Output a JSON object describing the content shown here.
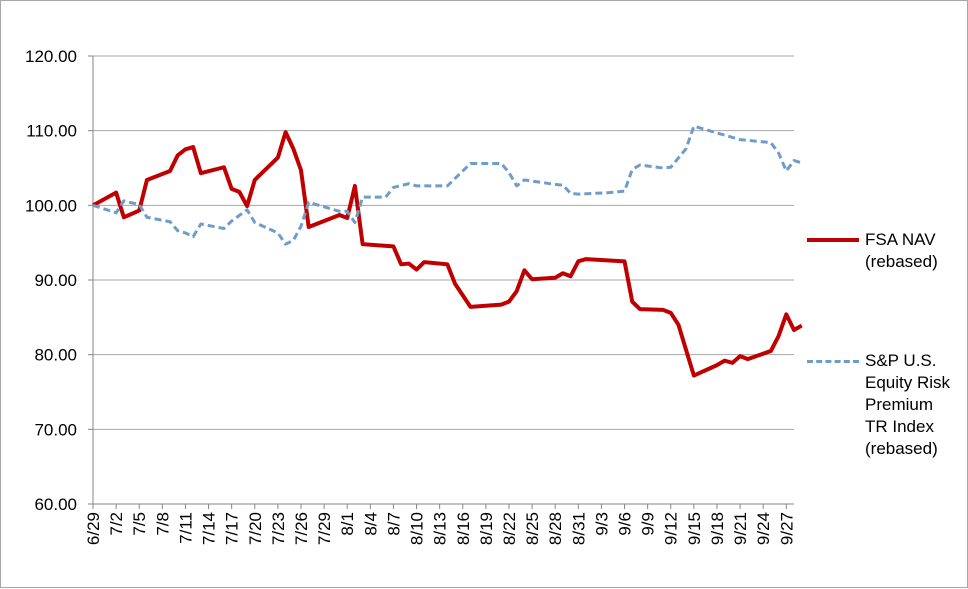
{
  "chart_data": {
    "type": "line",
    "title": "",
    "xlabel": "",
    "ylabel": "",
    "ylim": [
      60,
      120
    ],
    "yticks": [
      "60.00",
      "70.00",
      "80.00",
      "90.00",
      "100.00",
      "110.00",
      "120.00"
    ],
    "grid": "horizontal",
    "legend_position": "right",
    "x_tick_labels": [
      "6/29",
      "7/2",
      "7/5",
      "7/8",
      "7/11",
      "7/14",
      "7/17",
      "7/20",
      "7/23",
      "7/26",
      "7/29",
      "8/1",
      "8/4",
      "8/7",
      "8/10",
      "8/13",
      "8/16",
      "8/19",
      "8/22",
      "8/25",
      "8/28",
      "8/31",
      "9/3",
      "9/6",
      "9/9",
      "9/12",
      "9/15",
      "9/18",
      "9/21",
      "9/24",
      "9/27"
    ],
    "x_day_offsets": [
      0,
      3,
      6,
      9,
      12,
      15,
      18,
      21,
      24,
      27,
      30,
      33,
      36,
      39,
      42,
      45,
      48,
      51,
      54,
      57,
      60,
      63,
      66,
      69,
      72,
      75,
      78,
      81,
      84,
      87,
      90
    ],
    "x_range_days": [
      0,
      91
    ],
    "series": [
      {
        "name_lines": [
          "FSA NAV",
          "(rebased)"
        ],
        "color": "#c00000",
        "style": "solid",
        "points": [
          [
            0,
            100.0
          ],
          [
            3,
            101.7
          ],
          [
            4,
            98.4
          ],
          [
            6,
            99.3
          ],
          [
            7,
            103.4
          ],
          [
            10,
            104.6
          ],
          [
            11,
            106.7
          ],
          [
            12,
            107.5
          ],
          [
            13,
            107.8
          ],
          [
            14,
            104.3
          ],
          [
            17,
            105.1
          ],
          [
            18,
            102.2
          ],
          [
            19,
            101.8
          ],
          [
            20,
            99.9
          ],
          [
            21,
            103.4
          ],
          [
            24,
            106.4
          ],
          [
            25,
            109.8
          ],
          [
            26,
            107.6
          ],
          [
            27,
            104.7
          ],
          [
            28,
            97.1
          ],
          [
            32,
            98.7
          ],
          [
            33,
            98.3
          ],
          [
            34,
            102.6
          ],
          [
            35,
            94.8
          ],
          [
            39,
            94.5
          ],
          [
            40,
            92.1
          ],
          [
            41,
            92.2
          ],
          [
            42,
            91.4
          ],
          [
            43,
            92.4
          ],
          [
            46,
            92.1
          ],
          [
            47,
            89.5
          ],
          [
            49,
            86.4
          ],
          [
            53,
            86.7
          ],
          [
            54,
            87.1
          ],
          [
            55,
            88.5
          ],
          [
            56,
            91.3
          ],
          [
            57,
            90.1
          ],
          [
            60,
            90.3
          ],
          [
            61,
            90.9
          ],
          [
            62,
            90.5
          ],
          [
            63,
            92.5
          ],
          [
            64,
            92.8
          ],
          [
            69,
            92.5
          ],
          [
            70,
            87.1
          ],
          [
            71,
            86.1
          ],
          [
            74,
            86.0
          ],
          [
            75,
            85.6
          ],
          [
            76,
            84.0
          ],
          [
            77,
            80.6
          ],
          [
            78,
            77.2
          ],
          [
            81,
            78.6
          ],
          [
            82,
            79.2
          ],
          [
            83,
            78.9
          ],
          [
            84,
            79.8
          ],
          [
            85,
            79.4
          ],
          [
            88,
            80.5
          ],
          [
            89,
            82.5
          ],
          [
            90,
            85.4
          ],
          [
            91,
            83.3
          ],
          [
            92,
            83.9
          ]
        ]
      },
      {
        "name_lines": [
          "S&P U.S.",
          "Equity Risk",
          "Premium",
          "TR Index",
          "(rebased)"
        ],
        "color": "#6d9dc8",
        "style": "dashed",
        "points": [
          [
            0,
            100.0
          ],
          [
            3,
            99.0
          ],
          [
            4,
            100.6
          ],
          [
            6,
            100.1
          ],
          [
            7,
            98.4
          ],
          [
            10,
            97.8
          ],
          [
            11,
            96.6
          ],
          [
            12,
            96.3
          ],
          [
            13,
            95.8
          ],
          [
            14,
            97.5
          ],
          [
            17,
            96.9
          ],
          [
            18,
            97.9
          ],
          [
            20,
            99.4
          ],
          [
            21,
            97.7
          ],
          [
            24,
            96.3
          ],
          [
            25,
            94.8
          ],
          [
            26,
            95.3
          ],
          [
            27,
            97.2
          ],
          [
            28,
            100.4
          ],
          [
            32,
            99.2
          ],
          [
            33,
            99.2
          ],
          [
            34,
            97.7
          ],
          [
            35,
            101.1
          ],
          [
            38,
            101.1
          ],
          [
            39,
            102.4
          ],
          [
            41,
            102.9
          ],
          [
            42,
            102.6
          ],
          [
            46,
            102.6
          ],
          [
            47,
            103.6
          ],
          [
            49,
            105.6
          ],
          [
            53,
            105.6
          ],
          [
            54,
            104.4
          ],
          [
            55,
            102.6
          ],
          [
            56,
            103.4
          ],
          [
            60,
            102.8
          ],
          [
            61,
            102.7
          ],
          [
            62,
            101.6
          ],
          [
            63,
            101.5
          ],
          [
            67,
            101.7
          ],
          [
            69,
            101.9
          ],
          [
            70,
            104.8
          ],
          [
            71,
            105.4
          ],
          [
            74,
            105.0
          ],
          [
            75,
            105.1
          ],
          [
            77,
            107.6
          ],
          [
            78,
            110.6
          ],
          [
            81,
            109.7
          ],
          [
            84,
            108.8
          ],
          [
            88,
            108.4
          ],
          [
            89,
            107.0
          ],
          [
            90,
            104.6
          ],
          [
            91,
            106.0
          ],
          [
            92,
            105.7
          ]
        ]
      }
    ]
  }
}
